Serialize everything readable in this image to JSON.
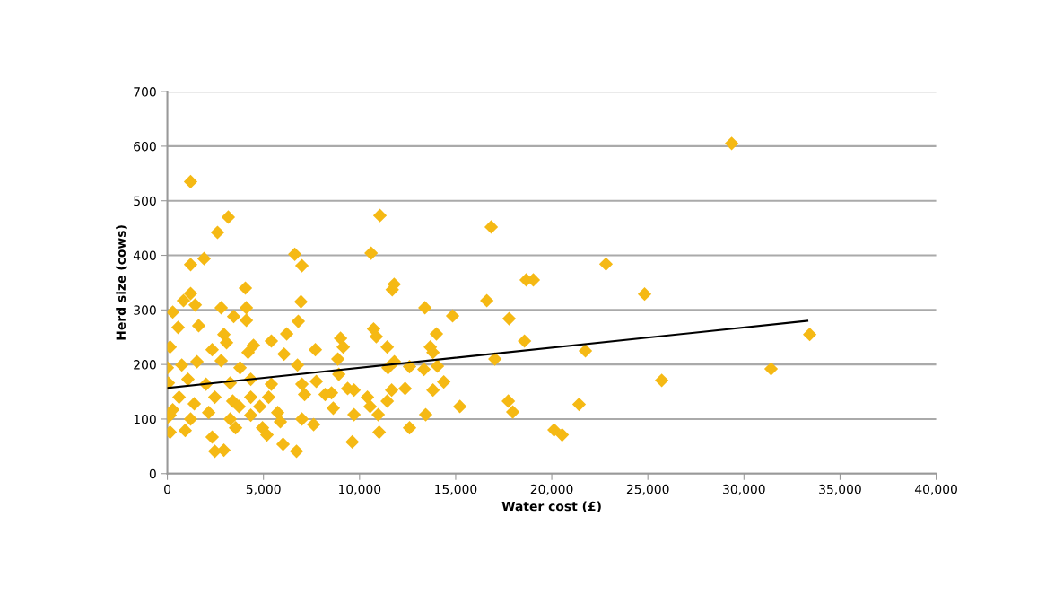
{
  "chart_data": {
    "type": "scatter",
    "xlabel": "Water cost (£)",
    "ylabel": "Herd size (cows)",
    "xlim": [
      0,
      40000
    ],
    "ylim": [
      0,
      700
    ],
    "xticks": [
      0,
      {
        "value": 5000,
        "label": "5,000"
      },
      {
        "value": 10000,
        "label": "10,000"
      },
      {
        "value": 15000,
        "label": "15,000"
      },
      {
        "value": 20000,
        "label": "20,000"
      },
      {
        "value": 25000,
        "label": "25,000"
      },
      {
        "value": 30000,
        "label": "30,000"
      },
      {
        "value": 35000,
        "label": "35,000"
      },
      {
        "value": 40000,
        "label": "40,000"
      }
    ],
    "yticks": [
      0,
      100,
      200,
      300,
      400,
      500,
      600,
      700
    ],
    "grid": "y",
    "marker": "diamond",
    "legend": false,
    "series": [
      {
        "color": "#f5b914",
        "x": [
          29360,
          22820,
          19040,
          24830,
          21750,
          33420,
          31410,
          25720,
          21420,
          20120,
          20540,
          11060,
          10600,
          16850,
          11800,
          11700,
          13400,
          14840,
          16620,
          17780,
          18670,
          10730,
          10870,
          11440,
          9010,
          9150,
          14000,
          13680,
          13820,
          17040,
          18580,
          8870,
          11810,
          11480,
          12600,
          13350,
          14050,
          8920,
          9380,
          9710,
          11670,
          12370,
          13820,
          14380,
          8540,
          8630,
          10410,
          10550,
          10970,
          9710,
          11440,
          13440,
          15220,
          17740,
          17970,
          9620,
          11020,
          12600,
          1210,
          3170,
          2610,
          1910,
          1210,
          4060,
          6630,
          7000,
          6950,
          6810,
          1210,
          840,
          1450,
          280,
          2800,
          4110,
          4110,
          3450,
          560,
          1630,
          2940,
          3080,
          140,
          2330,
          4200,
          4480,
          5410,
          6210,
          6070,
          7700,
          0,
          750,
          1540,
          2800,
          3780,
          6770,
          50,
          1070,
          2010,
          3270,
          4340,
          5410,
          7000,
          7750,
          610,
          1400,
          2470,
          3400,
          4340,
          5270,
          7140,
          8210,
          140,
          1210,
          2150,
          3270,
          4340,
          5740,
          7000,
          7610,
          5880,
          140,
          930,
          3550,
          4950,
          2330,
          2470,
          2940,
          5180,
          6020,
          6720,
          4810,
          3730,
          280,
          0
        ],
        "values": [
          605,
          384,
          355,
          329,
          225,
          255,
          192,
          171,
          127,
          80,
          71,
          473,
          404,
          452,
          347,
          337,
          304,
          289,
          317,
          284,
          355,
          265,
          251,
          232,
          248,
          232,
          256,
          232,
          222,
          210,
          243,
          210,
          205,
          194,
          196,
          191,
          197,
          182,
          156,
          153,
          153,
          156,
          153,
          168,
          148,
          120,
          140,
          123,
          108,
          108,
          133,
          108,
          123,
          133,
          113,
          58,
          76,
          84,
          535,
          470,
          442,
          394,
          383,
          340,
          402,
          381,
          315,
          279,
          330,
          317,
          309,
          296,
          304,
          304,
          281,
          288,
          268,
          271,
          255,
          240,
          232,
          227,
          222,
          235,
          243,
          256,
          219,
          227,
          194,
          199,
          205,
          207,
          194,
          199,
          166,
          173,
          164,
          166,
          173,
          164,
          164,
          169,
          140,
          128,
          140,
          133,
          140,
          140,
          145,
          145,
          107,
          100,
          112,
          100,
          107,
          112,
          100,
          90,
          95,
          76,
          79,
          84,
          84,
          67,
          41,
          43,
          71,
          54,
          41,
          123,
          123,
          117,
          103
        ]
      },
      {
        "type": "line",
        "color": "#000000",
        "marker": "none",
        "x": [
          0,
          33300
        ],
        "values": [
          157,
          280
        ]
      }
    ]
  }
}
